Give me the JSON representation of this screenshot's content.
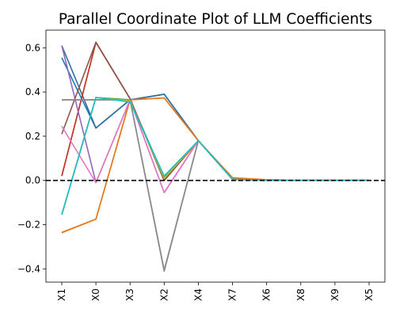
{
  "chart_data": {
    "type": "line",
    "title": "Parallel Coordinate Plot of LLM Coefficients",
    "xlabel": "",
    "ylabel": "",
    "categories": [
      "X1",
      "X0",
      "X3",
      "X2",
      "X4",
      "X7",
      "X6",
      "X8",
      "X9",
      "X5"
    ],
    "y_ticks": [
      0.6,
      0.4,
      0.2,
      0.0,
      -0.2,
      -0.4
    ],
    "y_tick_labels": [
      "0.6",
      "0.4",
      "0.2",
      "0.0",
      "−0.2",
      "−0.4"
    ],
    "ylim": [
      -0.46,
      0.68
    ],
    "reference_line": {
      "y": 0.0,
      "style": "dashed",
      "color": "#000000"
    },
    "grid": false,
    "legend": "none",
    "series": [
      {
        "color": "#1f77b4",
        "values": [
          0.555,
          0.237,
          0.365,
          0.39,
          0.18,
          0.01,
          0.002,
          0.0,
          0.0,
          0.0
        ]
      },
      {
        "color": "#2e6e9e",
        "values": [
          0.61,
          0.237,
          0.365,
          0.39,
          0.18,
          0.01,
          0.002,
          0.0,
          0.0,
          0.0
        ]
      },
      {
        "color": "#ff7f0e",
        "values": [
          -0.237,
          -0.175,
          0.365,
          0.373,
          0.18,
          0.012,
          0.003,
          0.0,
          0.0,
          0.0
        ]
      },
      {
        "color": "#e0791e",
        "values": [
          -0.235,
          -0.175,
          0.365,
          0.373,
          0.18,
          0.012,
          0.003,
          0.0,
          0.0,
          0.0
        ]
      },
      {
        "color": "#2ca02c",
        "values": [
          -0.155,
          0.375,
          0.365,
          0.015,
          0.18,
          0.005,
          0.001,
          0.0,
          0.0,
          0.0
        ]
      },
      {
        "color": "#d62728",
        "values": [
          0.02,
          0.625,
          0.37,
          0.0,
          0.18,
          0.005,
          0.001,
          0.0,
          0.0,
          0.0
        ]
      },
      {
        "color": "#c0392b",
        "values": [
          0.02,
          0.625,
          0.37,
          0.0,
          0.18,
          0.005,
          0.001,
          0.0,
          0.0,
          0.0
        ]
      },
      {
        "color": "#9467bd",
        "values": [
          0.61,
          -0.01,
          0.365,
          -0.055,
          0.18,
          0.005,
          0.001,
          0.0,
          0.0,
          0.0
        ]
      },
      {
        "color": "#8c564b",
        "values": [
          0.21,
          0.625,
          0.37,
          0.0,
          0.18,
          0.005,
          0.001,
          0.0,
          0.0,
          0.0
        ]
      },
      {
        "color": "#e377c2",
        "values": [
          0.245,
          -0.01,
          0.365,
          -0.055,
          0.18,
          0.005,
          0.001,
          0.0,
          0.0,
          0.0
        ]
      },
      {
        "color": "#7f7f7f",
        "values": [
          0.365,
          0.365,
          0.365,
          -0.41,
          0.18,
          0.005,
          0.001,
          0.0,
          0.0,
          0.0
        ]
      },
      {
        "color": "#8a8a8a",
        "values": [
          0.365,
          0.365,
          0.365,
          -0.405,
          0.18,
          0.005,
          0.001,
          0.0,
          0.0,
          0.0
        ]
      },
      {
        "color": "#bcbd22",
        "values": [
          -0.155,
          0.375,
          0.36,
          0.01,
          0.18,
          0.005,
          0.001,
          0.0,
          0.0,
          0.0
        ]
      },
      {
        "color": "#17becf",
        "values": [
          -0.155,
          0.375,
          0.355,
          0.02,
          0.18,
          0.005,
          0.001,
          0.0,
          0.0,
          0.0
        ]
      }
    ]
  }
}
